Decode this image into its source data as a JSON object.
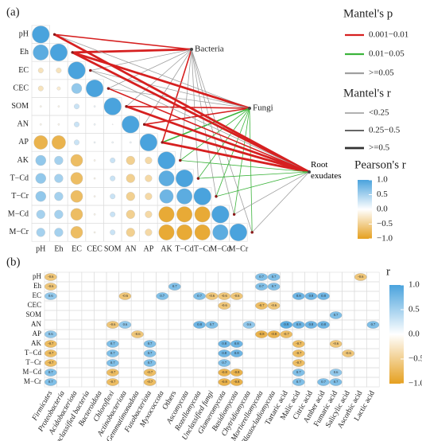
{
  "chart_data": [
    {
      "type": "correlogram",
      "panel_label": "(a)",
      "variables": [
        "pH",
        "Eh",
        "EC",
        "CEC",
        "SOM",
        "AN",
        "AP",
        "AK",
        "T−Cd",
        "T−Cr",
        "M−Cd",
        "M−Cr"
      ],
      "values": [
        [
          1
        ],
        [
          0.9,
          1
        ],
        [
          -0.3,
          -0.3,
          1
        ],
        [
          -0.3,
          -0.2,
          0.6,
          1
        ],
        [
          -0.1,
          -0.1,
          0.3,
          0.1,
          1
        ],
        [
          -0.1,
          -0.1,
          0.3,
          0.1,
          0.05,
          1
        ],
        [
          -0.8,
          -0.8,
          0.3,
          0.1,
          0.1,
          0.1,
          1
        ],
        [
          0.6,
          0.5,
          -0.7,
          -0.1,
          0.3,
          -0.5,
          -0.4,
          1
        ],
        [
          0.6,
          0.5,
          -0.7,
          -0.1,
          0.3,
          -0.5,
          -0.4,
          0.9,
          1
        ],
        [
          0.6,
          0.5,
          -0.7,
          -0.1,
          0.3,
          -0.5,
          -0.4,
          0.8,
          0.9,
          1
        ],
        [
          0.5,
          0.5,
          -0.7,
          -0.1,
          0.3,
          -0.5,
          -0.4,
          -0.9,
          -0.9,
          -0.9,
          1
        ],
        [
          0.5,
          0.5,
          -0.7,
          -0.1,
          0.3,
          -0.5,
          -0.4,
          -0.9,
          -0.9,
          -0.9,
          0.9,
          1
        ]
      ],
      "targets": [
        "Bacteria",
        "Fungi",
        "Root exudates"
      ],
      "links": [
        {
          "p": [
            0,
            0,
            2,
            2,
            2,
            2,
            0,
            2,
            2,
            2,
            2,
            2
          ],
          "r": [
            1,
            2,
            0,
            0,
            0,
            0,
            1,
            0,
            0,
            0,
            0,
            0
          ]
        },
        {
          "p": [
            2,
            0,
            2,
            2,
            0,
            0,
            1,
            1,
            1,
            1,
            1,
            1
          ],
          "r": [
            0,
            2,
            0,
            0,
            1,
            1,
            1,
            0,
            0,
            0,
            0,
            0
          ]
        },
        {
          "p": [
            0,
            0,
            2,
            0,
            0,
            0,
            0,
            1,
            1,
            1,
            2,
            2
          ],
          "r": [
            2,
            2,
            0,
            1,
            2,
            2,
            2,
            0,
            0,
            0,
            0,
            0
          ]
        }
      ],
      "p_legend": {
        "title": "Mantel's p",
        "labels": [
          "0.001−0.01",
          "0.01−0.05",
          ">=0.05"
        ],
        "colors": [
          "#d62020",
          "#3cb43c",
          "#a0a0a0"
        ]
      },
      "r_legend": {
        "title": "Mantel's r",
        "labels": [
          "<0.25",
          "0.25−0.5",
          ">=0.5"
        ]
      },
      "colorbar": {
        "title": "Pearson's r",
        "lim": [
          -1,
          1
        ],
        "ticks": [
          {
            "value": 1,
            "label": "1.0"
          },
          0.5,
          {
            "value": 0,
            "label": "0.0"
          },
          {
            "value": -0.5,
            "label": "−0.5"
          },
          {
            "value": -1,
            "label": "−1.0"
          }
        ]
      },
      "colors": [
        "#e5a020",
        "#ffffff",
        "#4aa3dd"
      ]
    },
    {
      "type": "heatmap",
      "panel_label": "(b)",
      "rows": [
        "pH",
        "Eh",
        "EC",
        "CEC",
        "SOM",
        "AN",
        "AP",
        "AK",
        "T−Cd",
        "T−Cr",
        "M−Cd",
        "M−Cr"
      ],
      "columns": [
        "Firmicutes",
        "Proteobacteria",
        "Acidobacteriota",
        "Unclassified bacteria",
        "Bacteroidota",
        "Chloroflexi",
        "Actinobacteriota",
        "Gemmatimonadota",
        "Fusobacteriota",
        "Myxococcota",
        "Others",
        "Ascomycota",
        "Rozellomycota",
        "Unclassified fungi",
        "Glomeromycota",
        "Basidiomycota",
        "Chytridiomycota",
        "Mortierellomycota",
        "Blastocladiomycota",
        "Tartaric acid",
        "Malic acid",
        "Citric acid",
        "Amber acid",
        "Fumaric acid",
        "Salicylic acid",
        "Ascorbic acid",
        "Lactic acid"
      ],
      "column_colors": [
        "#222",
        "#222",
        "#222",
        "#222",
        "#222",
        "#222",
        "#222",
        "#222",
        "#222",
        "#222",
        "#222",
        "#b03a3a",
        "#b03a3a",
        "#b03a3a",
        "#b03a3a",
        "#b03a3a",
        "#b03a3a",
        "#b03a3a",
        "#b03a3a",
        "#222",
        "#222",
        "#222",
        "#222",
        "#222",
        "#222",
        "#222",
        "#222"
      ],
      "column_italic": [
        true,
        true,
        true,
        true,
        true,
        true,
        true,
        true,
        true,
        true,
        false,
        true,
        true,
        true,
        true,
        true,
        true,
        true,
        true,
        false,
        false,
        false,
        false,
        false,
        false,
        false,
        false
      ],
      "values": [
        [
          -0.6,
          null,
          null,
          null,
          null,
          null,
          null,
          null,
          null,
          null,
          null,
          null,
          null,
          null,
          null,
          null,
          null,
          0.7,
          0.7,
          null,
          null,
          null,
          null,
          null,
          null,
          -0.6,
          null
        ],
        [
          -0.6,
          null,
          null,
          null,
          null,
          null,
          null,
          null,
          null,
          null,
          0.7,
          null,
          null,
          null,
          null,
          null,
          null,
          0.7,
          0.7,
          null,
          null,
          null,
          null,
          null,
          null,
          null,
          null
        ],
        [
          0.6,
          null,
          null,
          null,
          null,
          null,
          -0.6,
          null,
          null,
          0.7,
          null,
          null,
          0.7,
          -0.6,
          -0.6,
          -0.6,
          null,
          null,
          null,
          null,
          0.8,
          0.8,
          0.8,
          null,
          null,
          null,
          null
        ],
        [
          null,
          null,
          null,
          null,
          null,
          null,
          null,
          null,
          null,
          null,
          null,
          null,
          null,
          null,
          -0.6,
          null,
          null,
          -0.7,
          -0.6,
          null,
          null,
          null,
          null,
          null,
          null,
          null,
          null
        ],
        [
          null,
          null,
          null,
          null,
          null,
          null,
          null,
          null,
          null,
          null,
          null,
          null,
          null,
          null,
          null,
          null,
          null,
          null,
          null,
          null,
          null,
          null,
          null,
          0.7,
          null,
          null,
          null
        ],
        [
          null,
          null,
          null,
          null,
          null,
          -0.6,
          0.6,
          null,
          null,
          null,
          null,
          null,
          0.8,
          0.7,
          null,
          null,
          0.6,
          null,
          null,
          0.9,
          0.8,
          0.8,
          0.8,
          null,
          null,
          null,
          0.7
        ],
        [
          0.6,
          null,
          null,
          null,
          null,
          null,
          null,
          -0.6,
          null,
          null,
          null,
          null,
          null,
          null,
          null,
          null,
          null,
          -0.8,
          -0.8,
          -0.7,
          null,
          null,
          null,
          null,
          null,
          null,
          null
        ],
        [
          -0.7,
          null,
          null,
          null,
          null,
          0.7,
          null,
          null,
          0.7,
          null,
          null,
          null,
          null,
          null,
          0.8,
          0.8,
          null,
          null,
          null,
          null,
          -0.7,
          null,
          null,
          -0.6,
          null,
          null,
          null
        ],
        [
          -0.7,
          null,
          null,
          null,
          null,
          0.7,
          null,
          null,
          0.7,
          null,
          null,
          null,
          null,
          null,
          0.8,
          0.8,
          null,
          null,
          null,
          null,
          -0.7,
          null,
          null,
          null,
          -0.6,
          null,
          null
        ],
        [
          -0.7,
          null,
          null,
          null,
          null,
          0.7,
          null,
          null,
          0.7,
          null,
          null,
          null,
          null,
          null,
          0.7,
          null,
          null,
          null,
          null,
          null,
          -0.7,
          null,
          null,
          null,
          null,
          null,
          null
        ],
        [
          0.7,
          null,
          null,
          null,
          null,
          -0.7,
          null,
          null,
          -0.7,
          null,
          null,
          null,
          null,
          null,
          -0.8,
          -0.8,
          null,
          null,
          null,
          null,
          0.7,
          null,
          null,
          0.6,
          null,
          null,
          null
        ],
        [
          0.7,
          null,
          null,
          null,
          null,
          -0.7,
          null,
          null,
          -0.7,
          null,
          null,
          null,
          null,
          null,
          -0.8,
          -0.8,
          null,
          null,
          null,
          null,
          0.7,
          null,
          0.7,
          0.7,
          null,
          null,
          null
        ]
      ],
      "colorbar": {
        "title": "r",
        "lim": [
          -1,
          1
        ],
        "ticks": [
          {
            "value": 1,
            "label": "1.0"
          },
          0.5,
          {
            "value": 0,
            "label": "0.0"
          },
          {
            "value": -0.5,
            "label": "−0.5"
          },
          {
            "value": -1,
            "label": "−1.0"
          }
        ]
      },
      "colors": [
        "#e5a020",
        "#ffffff",
        "#4aa3dd"
      ]
    }
  ]
}
